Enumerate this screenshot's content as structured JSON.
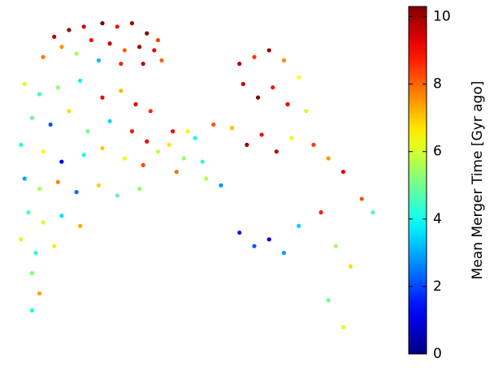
{
  "chart_data": {
    "type": "scatter",
    "colorbar_label": "Mean Merger Time [Gyr ago]",
    "colormap": "jet",
    "xlim": [
      0,
      100
    ],
    "ylim": [
      0,
      100
    ],
    "clim": [
      0,
      10.3
    ],
    "cticks": [
      0,
      2,
      4,
      6,
      8,
      10
    ],
    "x": [
      12,
      16,
      20,
      25,
      29,
      33,
      37,
      40,
      14,
      22,
      27,
      31,
      35,
      39,
      9,
      18,
      24,
      30,
      36,
      41,
      4,
      8,
      13,
      19,
      25,
      30,
      34,
      38,
      6,
      11,
      16,
      21,
      27,
      33,
      37,
      3,
      9,
      14,
      20,
      25,
      31,
      36,
      40,
      4,
      8,
      13,
      18,
      24,
      29,
      35,
      5,
      9,
      14,
      19,
      3,
      7,
      12,
      6,
      8,
      6,
      43,
      47,
      50,
      45,
      52,
      55,
      57,
      48,
      53,
      44,
      62,
      66,
      70,
      74,
      78,
      63,
      67,
      71,
      75,
      80,
      60,
      64,
      68,
      72,
      76,
      82,
      86,
      90,
      95,
      98,
      62,
      66,
      70,
      74,
      78,
      84,
      88,
      92,
      86,
      90
    ],
    "y": [
      92,
      94,
      95,
      96,
      95,
      96,
      93,
      91,
      89,
      91,
      90,
      88,
      89,
      88,
      86,
      87,
      85,
      84,
      84,
      85,
      78,
      75,
      77,
      79,
      74,
      76,
      72,
      70,
      68,
      66,
      70,
      64,
      67,
      64,
      61,
      60,
      58,
      55,
      57,
      59,
      56,
      54,
      58,
      50,
      47,
      49,
      46,
      48,
      45,
      47,
      40,
      37,
      39,
      36,
      32,
      28,
      30,
      22,
      16,
      11,
      60,
      56,
      62,
      52,
      55,
      66,
      48,
      64,
      50,
      64,
      84,
      86,
      88,
      85,
      80,
      78,
      74,
      77,
      72,
      70,
      65,
      60,
      63,
      58,
      62,
      60,
      56,
      52,
      44,
      40,
      34,
      30,
      32,
      28,
      36,
      40,
      30,
      24,
      14,
      6
    ],
    "c": [
      9.8,
      10.1,
      9.5,
      10.3,
      8.9,
      9.9,
      10.2,
      8.4,
      7.5,
      9.2,
      9.6,
      8.1,
      10.0,
      9.3,
      7.8,
      5.5,
      3.2,
      8.7,
      9.7,
      8.0,
      6.1,
      4.5,
      5.2,
      3.8,
      9.1,
      7.2,
      9.4,
      8.6,
      4.9,
      2.1,
      6.8,
      5.0,
      3.5,
      8.8,
      9.0,
      4.2,
      6.5,
      1.2,
      4.0,
      7.0,
      6.2,
      8.3,
      5.8,
      3.0,
      5.6,
      7.7,
      2.4,
      6.9,
      4.8,
      5.3,
      4.6,
      6.0,
      3.6,
      7.3,
      5.9,
      4.4,
      6.6,
      5.1,
      7.4,
      4.1,
      6.7,
      5.4,
      3.9,
      7.9,
      4.3,
      8.2,
      2.8,
      6.3,
      5.7,
      9.0,
      9.8,
      8.5,
      10.1,
      7.6,
      6.4,
      9.5,
      10.3,
      8.8,
      9.2,
      5.9,
      7.1,
      10.0,
      8.9,
      9.7,
      6.3,
      8.4,
      7.5,
      9.3,
      8.2,
      4.7,
      1.5,
      2.2,
      1.0,
      2.9,
      3.4,
      8.7,
      5.5,
      6.8,
      4.9,
      6.1
    ]
  }
}
